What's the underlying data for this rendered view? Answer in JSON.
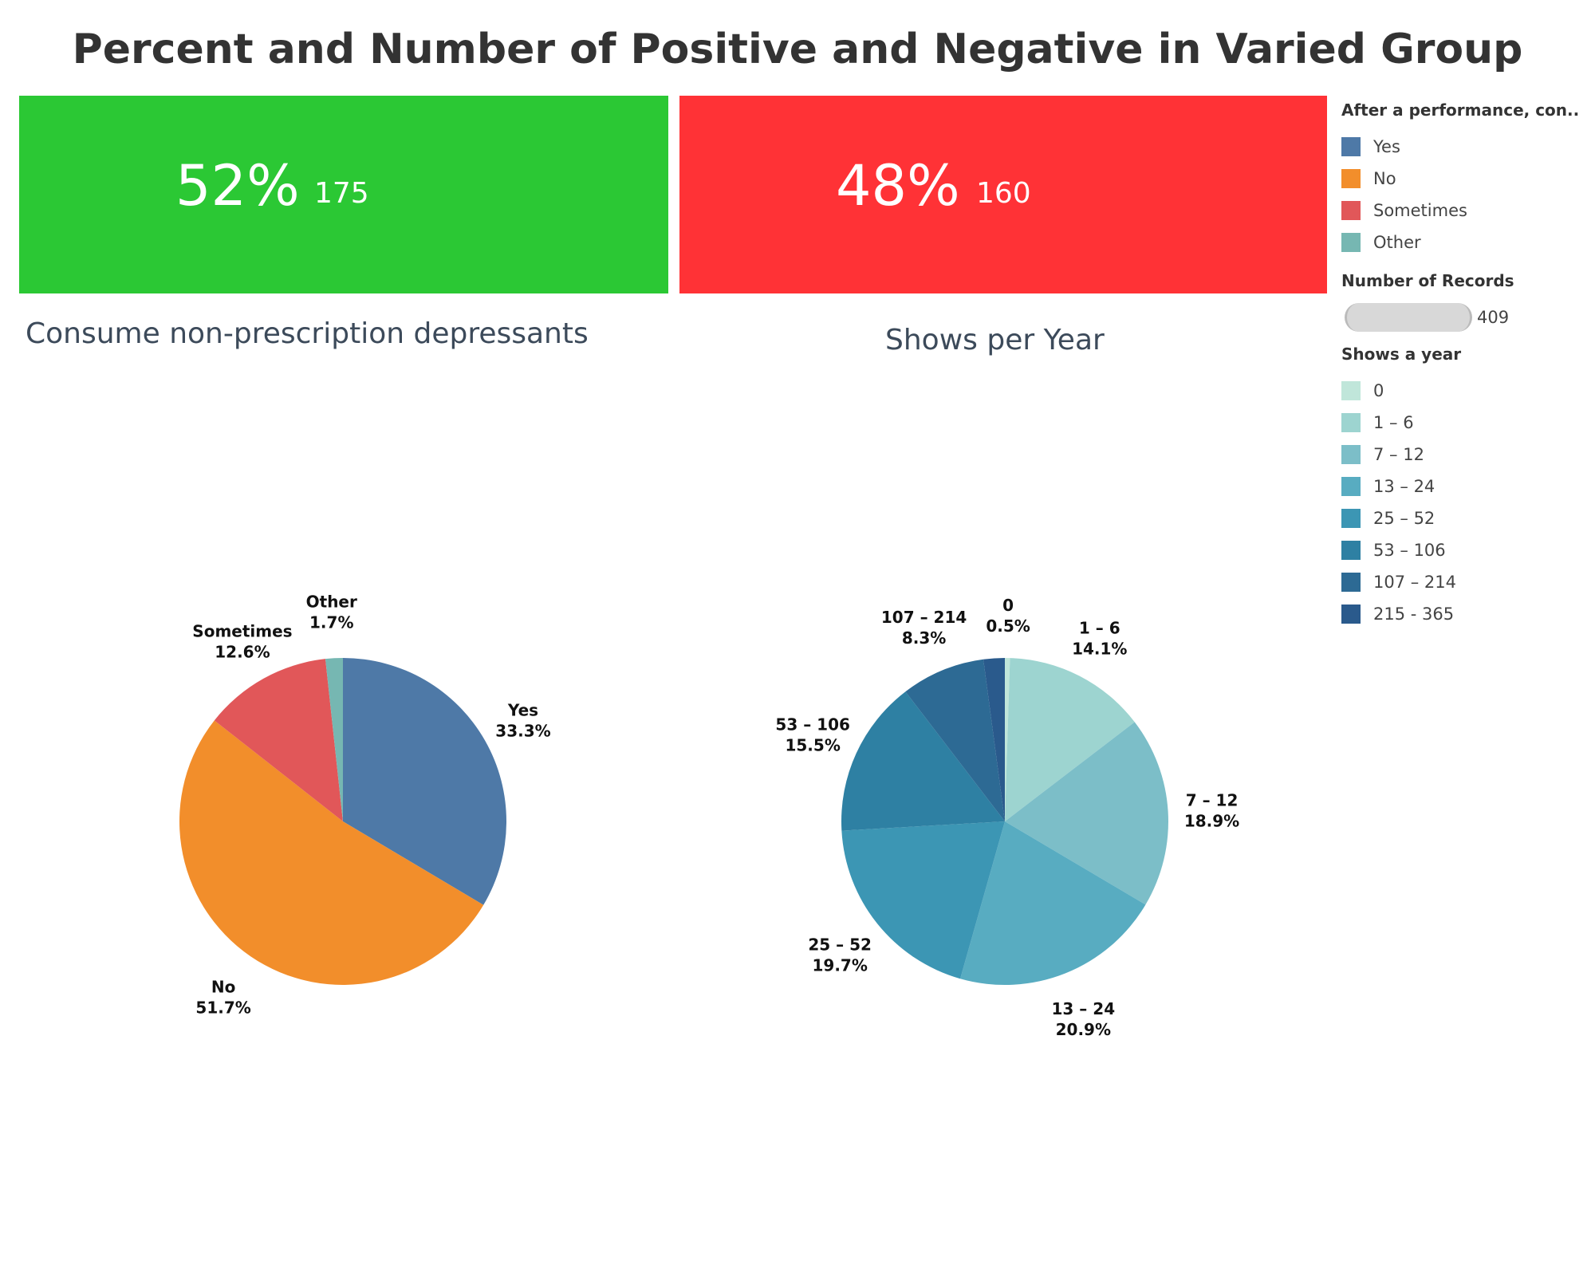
{
  "title": "Percent and Number of Positive and Negative in Varied Group",
  "kpis": {
    "positive": {
      "percent": "52%",
      "count": "175",
      "color": "#2bc834"
    },
    "negative": {
      "percent": "48%",
      "count": "160",
      "color": "#ff3236"
    }
  },
  "legends": {
    "performance": {
      "title": "After a performance,  con..",
      "items": [
        {
          "label": "Yes",
          "color": "#4e79a7"
        },
        {
          "label": "No",
          "color": "#f28e2b"
        },
        {
          "label": "Sometimes",
          "color": "#e15759"
        },
        {
          "label": "Other",
          "color": "#76b7b2"
        }
      ]
    },
    "records": {
      "title": "Number of Records",
      "value": "409"
    },
    "shows": {
      "title": "Shows a year",
      "items": [
        {
          "label": "0",
          "color": "#c0e6da"
        },
        {
          "label": "1 – 6",
          "color": "#9dd4d0"
        },
        {
          "label": "7 – 12",
          "color": "#7cbec8"
        },
        {
          "label": "13 – 24",
          "color": "#58acc1"
        },
        {
          "label": "25 – 52",
          "color": "#3c96b4"
        },
        {
          "label": "53 – 106",
          "color": "#2e80a3"
        },
        {
          "label": "107 – 214",
          "color": "#2d6a94"
        },
        {
          "label": "215 - 365",
          "color": "#2a5a8c"
        }
      ]
    }
  },
  "chart_data": [
    {
      "type": "pie",
      "title": "Consume non-prescription depressants",
      "slices": [
        {
          "label": "Yes",
          "value": 33.3,
          "pct_label": "33.3%",
          "color": "#4e79a7"
        },
        {
          "label": "No",
          "value": 51.7,
          "pct_label": "51.7%",
          "color": "#f28e2b"
        },
        {
          "label": "Sometimes",
          "value": 12.6,
          "pct_label": "12.6%",
          "color": "#e15759"
        },
        {
          "label": "Other",
          "value": 1.7,
          "pct_label": "1.7%",
          "color": "#76b7b2"
        }
      ]
    },
    {
      "type": "pie",
      "title": "Shows per Year",
      "slices": [
        {
          "label": "0",
          "value": 0.5,
          "pct_label": "0.5%",
          "color": "#c0e6da"
        },
        {
          "label": "1 – 6",
          "value": 14.1,
          "pct_label": "14.1%",
          "color": "#9dd4d0"
        },
        {
          "label": "7 – 12",
          "value": 18.9,
          "pct_label": "18.9%",
          "color": "#7cbec8"
        },
        {
          "label": "13 – 24",
          "value": 20.9,
          "pct_label": "20.9%",
          "color": "#58acc1"
        },
        {
          "label": "25 – 52",
          "value": 19.7,
          "pct_label": "19.7%",
          "color": "#3c96b4"
        },
        {
          "label": "53 – 106",
          "value": 15.5,
          "pct_label": "15.5%",
          "color": "#2e80a3"
        },
        {
          "label": "107 – 214",
          "value": 8.3,
          "pct_label": "8.3%",
          "color": "#2d6a94"
        },
        {
          "label": "215 - 365",
          "value": 2.1,
          "pct_label": "",
          "color": "#2a5a8c"
        }
      ]
    }
  ]
}
